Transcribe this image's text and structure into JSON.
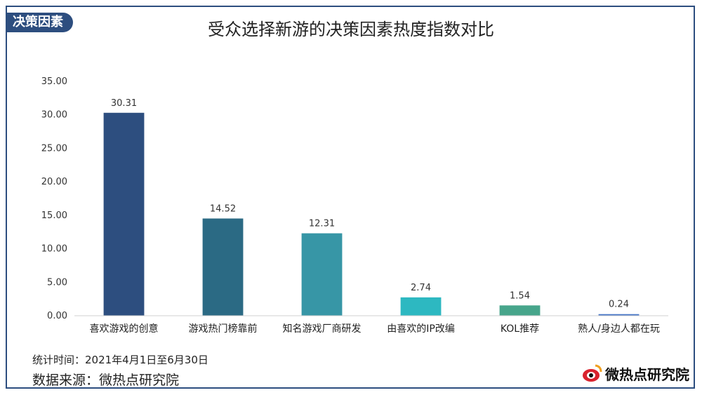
{
  "header": {
    "tag": "决策因素",
    "title": "受众选择新游的决策因素热度指数对比"
  },
  "footer": {
    "stat_period": "统计时间：2021年4月1日至6月30日",
    "source": "数据来源：微热点研究院",
    "logo_text": "微热点研究院"
  },
  "chart_data": {
    "type": "bar",
    "title": "受众选择新游的决策因素热度指数对比",
    "categories": [
      "喜欢游戏的创意",
      "游戏热门榜靠前",
      "知名游戏厂商研发",
      "由喜欢的IP改编",
      "KOL推荐",
      "熟人/身边人都在玩"
    ],
    "values": [
      30.31,
      14.52,
      12.31,
      2.74,
      1.54,
      0.24
    ],
    "value_labels": [
      "30.31",
      "14.52",
      "12.31",
      "2.74",
      "1.54",
      "0.24"
    ],
    "colors": [
      "#2d4e7f",
      "#2b6a84",
      "#3796a6",
      "#2db8c1",
      "#47a58b",
      "#4a78c8"
    ],
    "ylim": [
      0,
      35
    ],
    "yticks": [
      "0.00",
      "5.00",
      "10.00",
      "15.00",
      "20.00",
      "25.00",
      "30.00",
      "35.00"
    ],
    "ytick_values": [
      0,
      5,
      10,
      15,
      20,
      25,
      30,
      35
    ],
    "grid": false,
    "xlabel": "",
    "ylabel": ""
  }
}
